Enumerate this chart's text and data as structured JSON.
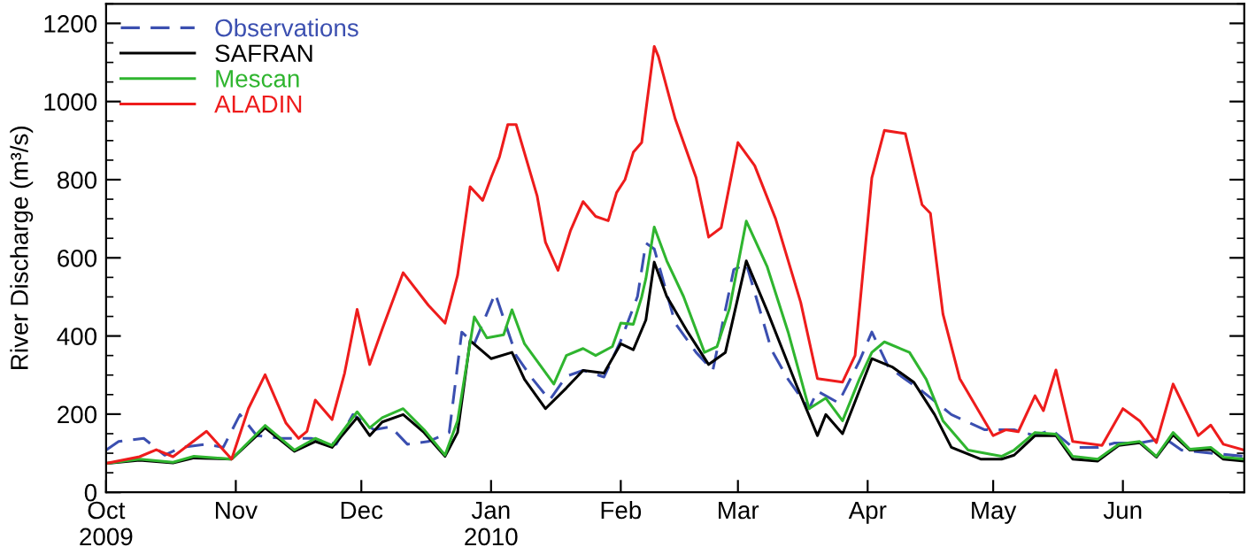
{
  "chart_data": {
    "type": "line",
    "ylabel": "River Discharge (m³/s)",
    "xlim": [
      "2009-10-01",
      "2010-06-30"
    ],
    "xticks": [
      {
        "value": "2009-10-01",
        "label": "Oct\n2009"
      },
      {
        "value": "2009-11-01",
        "label": "Nov"
      },
      {
        "value": "2009-12-01",
        "label": "Dec"
      },
      {
        "value": "2010-01-01",
        "label": "Jan\n2010"
      },
      {
        "value": "2010-02-01",
        "label": "Feb"
      },
      {
        "value": "2010-03-01",
        "label": "Mar"
      },
      {
        "value": "2010-04-01",
        "label": "Apr"
      },
      {
        "value": "2010-05-01",
        "label": "May"
      },
      {
        "value": "2010-06-01",
        "label": "Jun"
      }
    ],
    "ylim": [
      0,
      1250
    ],
    "yticks": [
      0,
      {
        "value": 50,
        "label": null
      },
      {
        "value": 100,
        "label": null
      },
      {
        "value": 150,
        "label": null
      },
      200,
      {
        "value": 250,
        "label": null
      },
      {
        "value": 300,
        "label": null
      },
      {
        "value": 350,
        "label": null
      },
      400,
      {
        "value": 450,
        "label": null
      },
      {
        "value": 500,
        "label": null
      },
      {
        "value": 550,
        "label": null
      },
      600,
      {
        "value": 650,
        "label": null
      },
      {
        "value": 700,
        "label": null
      },
      {
        "value": 750,
        "label": null
      },
      800,
      {
        "value": 850,
        "label": null
      },
      {
        "value": 900,
        "label": null
      },
      {
        "value": 950,
        "label": null
      },
      1000,
      {
        "value": 1050,
        "label": null
      },
      {
        "value": 1100,
        "label": null
      },
      {
        "value": 1150,
        "label": null
      },
      1200,
      {
        "value": 1250,
        "label": null
      }
    ],
    "grid": false,
    "legend": "top left",
    "series": [
      {
        "name": "Observations",
        "color": "#3b4fb0",
        "line_style": "dashed",
        "x": [
          "2009-10-01",
          "2009-10-04",
          "2009-10-10",
          "2009-10-15",
          "2009-10-19",
          "2009-10-25",
          "2009-10-29",
          "2009-11-02",
          "2009-11-06",
          "2009-11-12",
          "2009-11-19",
          "2009-11-25",
          "2009-11-29",
          "2009-12-04",
          "2009-12-08",
          "2009-12-12",
          "2009-12-17",
          "2009-12-22",
          "2009-12-25",
          "2009-12-28",
          "2010-01-02",
          "2010-01-07",
          "2010-01-11",
          "2010-01-15",
          "2010-01-19",
          "2010-01-23",
          "2010-01-28",
          "2010-02-01",
          "2010-02-05",
          "2010-02-07",
          "2010-02-09",
          "2010-02-14",
          "2010-02-19",
          "2010-02-23",
          "2010-02-28",
          "2010-03-03",
          "2010-03-09",
          "2010-03-13",
          "2010-03-18",
          "2010-03-20",
          "2010-03-25",
          "2010-03-30",
          "2010-04-02",
          "2010-04-06",
          "2010-04-14",
          "2010-04-21",
          "2010-04-29",
          "2010-05-06",
          "2010-05-11",
          "2010-05-15",
          "2010-05-20",
          "2010-05-26",
          "2010-05-30",
          "2010-06-05",
          "2010-06-11",
          "2010-06-15",
          "2010-06-22",
          "2010-06-30"
        ],
        "values": [
          108,
          130,
          138,
          95,
          115,
          123,
          115,
          199,
          145,
          138,
          138,
          123,
          199,
          160,
          168,
          123,
          130,
          153,
          410,
          380,
          509,
          350,
          289,
          236,
          297,
          312,
          295,
          388,
          501,
          638,
          623,
          433,
          358,
          312,
          570,
          585,
          365,
          289,
          214,
          259,
          229,
          335,
          410,
          320,
          259,
          199,
          160,
          160,
          145,
          160,
          115,
          115,
          126,
          126,
          138,
          108,
          100,
          92
        ]
      },
      {
        "name": "SAFRAN",
        "color": "#000000",
        "line_style": "solid",
        "x": [
          "2009-10-01",
          "2009-10-09",
          "2009-10-17",
          "2009-10-22",
          "2009-10-31",
          "2009-11-08",
          "2009-11-15",
          "2009-11-20",
          "2009-11-24",
          "2009-11-30",
          "2009-12-03",
          "2009-12-06",
          "2009-12-11",
          "2009-12-16",
          "2009-12-21",
          "2009-12-24",
          "2009-12-27",
          "2010-01-01",
          "2010-01-06",
          "2010-01-09",
          "2010-01-14",
          "2010-01-19",
          "2010-01-23",
          "2010-01-28",
          "2010-02-01",
          "2010-02-04",
          "2010-02-07",
          "2010-02-09",
          "2010-02-12",
          "2010-02-17",
          "2010-02-22",
          "2010-02-26",
          "2010-03-03",
          "2010-03-08",
          "2010-03-15",
          "2010-03-20",
          "2010-03-22",
          "2010-03-26",
          "2010-04-02",
          "2010-04-07",
          "2010-04-12",
          "2010-04-17",
          "2010-04-21",
          "2010-04-28",
          "2010-05-03",
          "2010-05-06",
          "2010-05-11",
          "2010-05-16",
          "2010-05-20",
          "2010-05-26",
          "2010-05-31",
          "2010-06-05",
          "2010-06-09",
          "2010-06-13",
          "2010-06-17",
          "2010-06-22",
          "2010-06-25",
          "2010-06-30"
        ],
        "values": [
          74,
          82,
          75,
          88,
          85,
          165,
          105,
          130,
          115,
          191,
          145,
          180,
          199,
          153,
          92,
          153,
          388,
          342,
          358,
          289,
          214,
          267,
          312,
          305,
          380,
          365,
          441,
          589,
          501,
          410,
          327,
          358,
          592,
          464,
          274,
          145,
          199,
          150,
          342,
          320,
          282,
          199,
          115,
          85,
          85,
          95,
          145,
          145,
          85,
          80,
          120,
          127,
          90,
          147,
          108,
          110,
          85,
          80
        ]
      },
      {
        "name": "Mescan",
        "color": "#2fb52f",
        "line_style": "solid",
        "x": [
          "2009-10-01",
          "2009-10-09",
          "2009-10-17",
          "2009-10-22",
          "2009-10-31",
          "2009-11-08",
          "2009-11-15",
          "2009-11-20",
          "2009-11-24",
          "2009-11-30",
          "2009-12-03",
          "2009-12-06",
          "2009-12-11",
          "2009-12-16",
          "2009-12-21",
          "2009-12-24",
          "2009-12-28",
          "2009-12-31",
          "2010-01-04",
          "2010-01-06",
          "2010-01-09",
          "2010-01-16",
          "2010-01-19",
          "2010-01-23",
          "2010-01-26",
          "2010-01-30",
          "2010-02-01",
          "2010-02-04",
          "2010-02-06",
          "2010-02-07",
          "2010-02-09",
          "2010-02-12",
          "2010-02-16",
          "2010-02-21",
          "2010-02-24",
          "2010-02-27",
          "2010-03-03",
          "2010-03-08",
          "2010-03-13",
          "2010-03-18",
          "2010-03-22",
          "2010-03-26",
          "2010-03-30",
          "2010-04-02",
          "2010-04-05",
          "2010-04-11",
          "2010-04-15",
          "2010-04-19",
          "2010-04-25",
          "2010-05-03",
          "2010-05-06",
          "2010-05-11",
          "2010-05-16",
          "2010-05-20",
          "2010-05-26",
          "2010-05-31",
          "2010-06-05",
          "2010-06-09",
          "2010-06-13",
          "2010-06-17",
          "2010-06-22",
          "2010-06-25",
          "2010-06-30"
        ],
        "values": [
          74,
          85,
          77,
          92,
          85,
          171,
          108,
          138,
          120,
          206,
          165,
          191,
          214,
          160,
          95,
          183,
          449,
          395,
          403,
          467,
          380,
          277,
          350,
          368,
          350,
          373,
          433,
          430,
          500,
          547,
          679,
          592,
          501,
          358,
          373,
          471,
          694,
          577,
          410,
          214,
          241,
          183,
          289,
          358,
          385,
          358,
          289,
          183,
          108,
          92,
          108,
          153,
          149,
          92,
          85,
          123,
          130,
          92,
          153,
          110,
          115,
          90,
          85
        ]
      },
      {
        "name": "ALADIN",
        "color": "#ee1c1c",
        "line_style": "solid",
        "x": [
          "2009-10-01",
          "2009-10-09",
          "2009-10-13",
          "2009-10-17",
          "2009-10-25",
          "2009-10-31",
          "2009-11-04",
          "2009-11-08",
          "2009-11-13",
          "2009-11-16",
          "2009-11-18",
          "2009-11-20",
          "2009-11-24",
          "2009-11-27",
          "2009-11-30",
          "2009-12-03",
          "2009-12-06",
          "2009-12-11",
          "2009-12-17",
          "2009-12-21",
          "2009-12-24",
          "2009-12-27",
          "2009-12-30",
          "2010-01-01",
          "2010-01-03",
          "2010-01-05",
          "2010-01-07",
          "2010-01-12",
          "2010-01-14",
          "2010-01-17",
          "2010-01-20",
          "2010-01-23",
          "2010-01-26",
          "2010-01-29",
          "2010-01-31",
          "2010-02-02",
          "2010-02-04",
          "2010-02-06",
          "2010-02-09",
          "2010-02-10",
          "2010-02-14",
          "2010-02-19",
          "2010-02-22",
          "2010-02-25",
          "2010-03-01",
          "2010-03-05",
          "2010-03-10",
          "2010-03-16",
          "2010-03-20",
          "2010-03-26",
          "2010-03-29",
          "2010-04-02",
          "2010-04-05",
          "2010-04-10",
          "2010-04-14",
          "2010-04-16",
          "2010-04-19",
          "2010-04-23",
          "2010-05-01",
          "2010-05-04",
          "2010-05-07",
          "2010-05-11",
          "2010-05-13",
          "2010-05-16",
          "2010-05-20",
          "2010-05-27",
          "2010-06-01",
          "2010-06-05",
          "2010-06-09",
          "2010-06-13",
          "2010-06-19",
          "2010-06-22",
          "2010-06-25",
          "2010-06-30"
        ],
        "values": [
          74,
          91,
          109,
          91,
          156,
          85,
          214,
          301,
          177,
          138,
          156,
          236,
          186,
          305,
          468,
          327,
          418,
          562,
          479,
          433,
          555,
          782,
          747,
          805,
          858,
          941,
          941,
          759,
          640,
          568,
          670,
          744,
          706,
          695,
          767,
          800,
          870,
          895,
          1141,
          1115,
          956,
          805,
          653,
          677,
          895,
          836,
          700,
          486,
          291,
          282,
          350,
          805,
          926,
          918,
          736,
          714,
          456,
          291,
          145,
          160,
          155,
          247,
          209,
          313,
          130,
          120,
          214,
          183,
          127,
          277,
          145,
          172,
          123,
          108
        ]
      }
    ]
  }
}
